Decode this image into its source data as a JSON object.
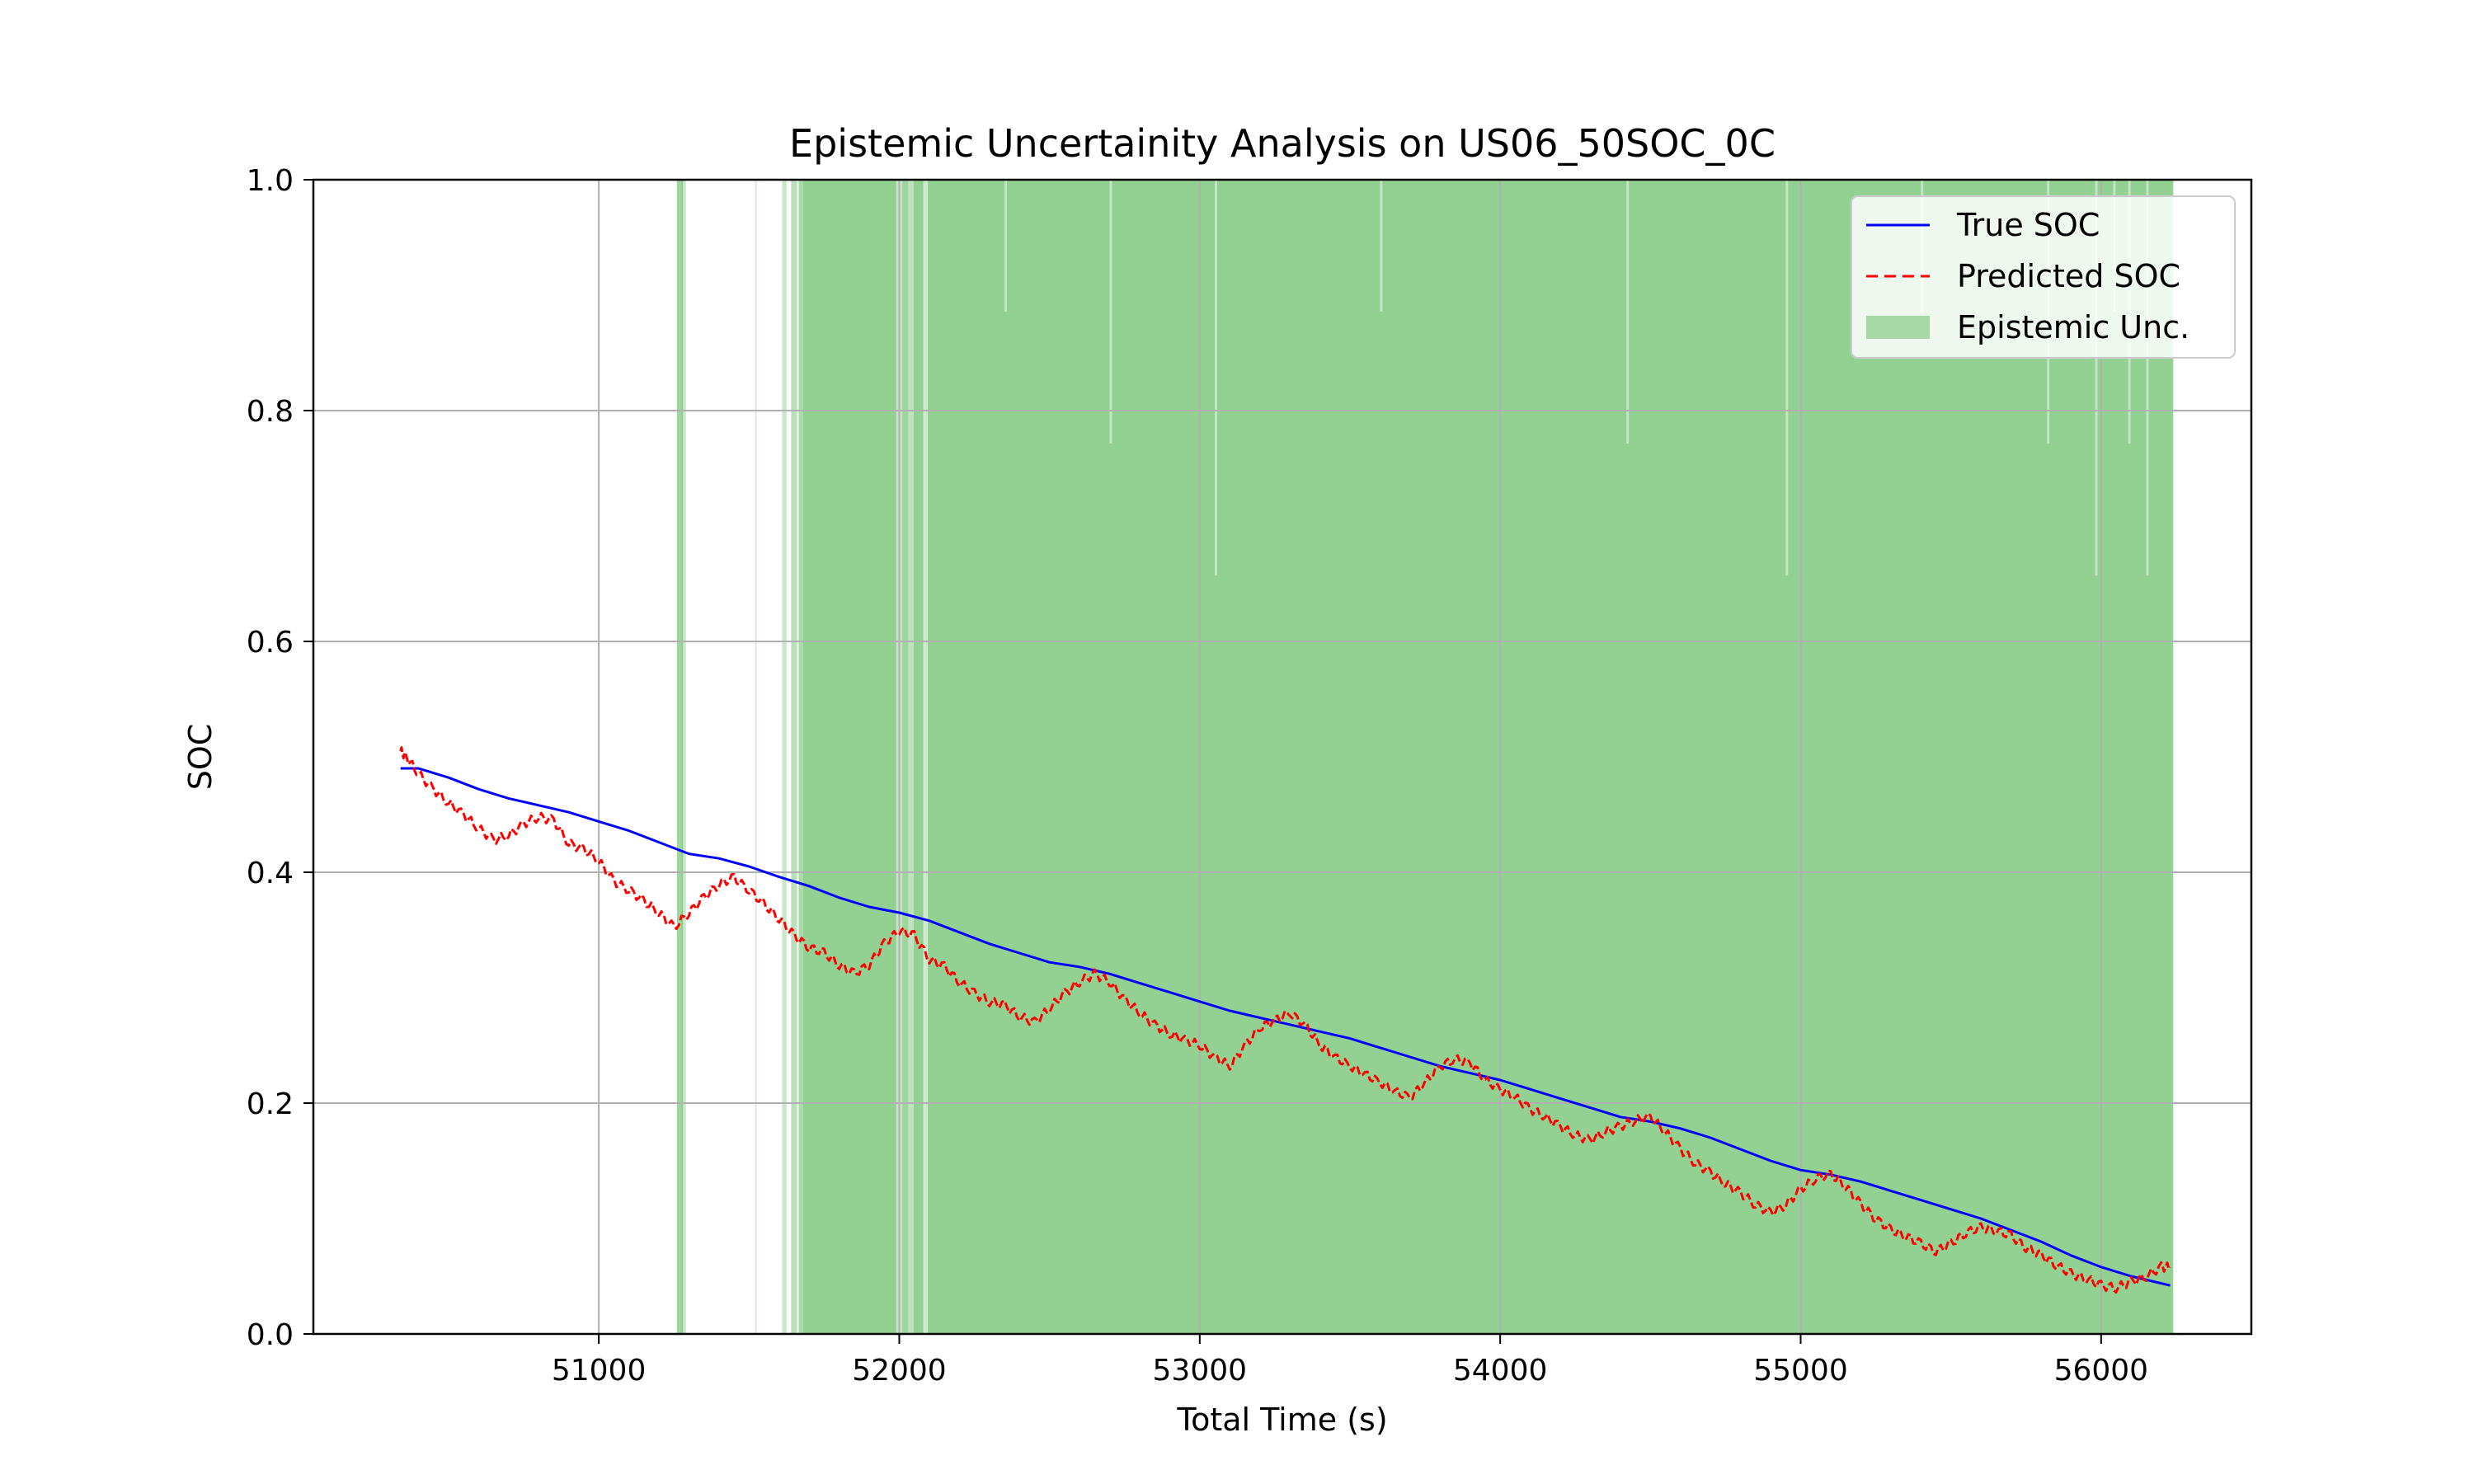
{
  "chart_data": {
    "type": "line",
    "title": "Epistemic Uncertainity Analysis on US06_50SOC_0C",
    "xlabel": "Total Time (s)",
    "ylabel": "SOC",
    "xlim": [
      50050,
      56500
    ],
    "ylim": [
      0,
      1
    ],
    "xticks": [
      51000,
      52000,
      53000,
      54000,
      55000,
      56000
    ],
    "xtick_labels": [
      "51000",
      "52000",
      "53000",
      "54000",
      "55000",
      "56000"
    ],
    "yticks": [
      0,
      0.2,
      0.4,
      0.6,
      0.8,
      1.0
    ],
    "ytick_labels": [
      "0.0",
      "0.2",
      "0.4",
      "0.6",
      "0.8",
      "1.0"
    ],
    "grid": true,
    "legend_position": "top-right",
    "series": [
      {
        "name": "True SOC",
        "color": "#0000ff",
        "style": "solid",
        "x": [
          50340,
          50400,
          50500,
          50600,
          50700,
          50800,
          50900,
          51000,
          51100,
          51200,
          51300,
          51400,
          51500,
          51600,
          51700,
          51800,
          51900,
          52000,
          52100,
          52200,
          52300,
          52400,
          52500,
          52600,
          52700,
          52800,
          52900,
          53000,
          53100,
          53200,
          53300,
          53400,
          53500,
          53600,
          53700,
          53800,
          53900,
          54000,
          54100,
          54200,
          54300,
          54400,
          54500,
          54600,
          54700,
          54800,
          54900,
          55000,
          55100,
          55200,
          55300,
          55400,
          55500,
          55600,
          55700,
          55800,
          55900,
          56000,
          56100,
          56230
        ],
        "y": [
          0.49,
          0.49,
          0.482,
          0.472,
          0.464,
          0.458,
          0.452,
          0.444,
          0.436,
          0.426,
          0.416,
          0.412,
          0.405,
          0.396,
          0.388,
          0.378,
          0.37,
          0.365,
          0.358,
          0.348,
          0.338,
          0.33,
          0.322,
          0.318,
          0.312,
          0.304,
          0.296,
          0.288,
          0.28,
          0.274,
          0.268,
          0.262,
          0.256,
          0.248,
          0.24,
          0.232,
          0.226,
          0.22,
          0.212,
          0.204,
          0.196,
          0.188,
          0.184,
          0.178,
          0.17,
          0.16,
          0.15,
          0.142,
          0.138,
          0.132,
          0.124,
          0.116,
          0.108,
          0.1,
          0.09,
          0.08,
          0.068,
          0.058,
          0.05,
          0.042
        ]
      },
      {
        "name": "Predicted SOC",
        "color": "#ff0000",
        "style": "dashed",
        "x": [
          50340,
          50360,
          50400,
          50450,
          50500,
          50550,
          50600,
          50650,
          50700,
          50750,
          50800,
          50850,
          50900,
          50950,
          51000,
          51050,
          51100,
          51150,
          51200,
          51250,
          51300,
          51350,
          51400,
          51450,
          51500,
          51550,
          51600,
          51650,
          51700,
          51750,
          51800,
          51850,
          51900,
          51950,
          52000,
          52050,
          52100,
          52150,
          52200,
          52250,
          52300,
          52350,
          52400,
          52450,
          52500,
          52550,
          52600,
          52650,
          52700,
          52750,
          52800,
          52850,
          52900,
          52950,
          53000,
          53050,
          53100,
          53150,
          53200,
          53250,
          53300,
          53350,
          53400,
          53450,
          53500,
          53550,
          53600,
          53650,
          53700,
          53750,
          53800,
          53850,
          53900,
          53950,
          54000,
          54050,
          54100,
          54150,
          54200,
          54250,
          54300,
          54350,
          54400,
          54450,
          54500,
          54550,
          54600,
          54650,
          54700,
          54750,
          54800,
          54850,
          54900,
          54950,
          55000,
          55050,
          55100,
          55150,
          55200,
          55250,
          55300,
          55350,
          55400,
          55450,
          55500,
          55550,
          55600,
          55650,
          55700,
          55750,
          55800,
          55850,
          55900,
          55950,
          56000,
          56050,
          56100,
          56150,
          56200,
          56230
        ],
        "y": [
          0.505,
          0.5,
          0.485,
          0.472,
          0.46,
          0.45,
          0.438,
          0.428,
          0.432,
          0.442,
          0.448,
          0.445,
          0.425,
          0.42,
          0.41,
          0.392,
          0.385,
          0.375,
          0.365,
          0.352,
          0.365,
          0.378,
          0.39,
          0.395,
          0.385,
          0.372,
          0.36,
          0.345,
          0.335,
          0.33,
          0.32,
          0.312,
          0.32,
          0.338,
          0.35,
          0.345,
          0.325,
          0.318,
          0.305,
          0.295,
          0.288,
          0.285,
          0.275,
          0.27,
          0.282,
          0.295,
          0.305,
          0.312,
          0.305,
          0.29,
          0.278,
          0.268,
          0.26,
          0.255,
          0.25,
          0.24,
          0.232,
          0.25,
          0.265,
          0.272,
          0.278,
          0.268,
          0.25,
          0.24,
          0.232,
          0.225,
          0.218,
          0.21,
          0.205,
          0.218,
          0.232,
          0.238,
          0.235,
          0.22,
          0.212,
          0.205,
          0.195,
          0.188,
          0.18,
          0.172,
          0.168,
          0.175,
          0.18,
          0.185,
          0.188,
          0.175,
          0.16,
          0.148,
          0.14,
          0.13,
          0.122,
          0.112,
          0.105,
          0.112,
          0.125,
          0.135,
          0.138,
          0.128,
          0.112,
          0.1,
          0.09,
          0.085,
          0.078,
          0.072,
          0.078,
          0.088,
          0.092,
          0.09,
          0.085,
          0.075,
          0.068,
          0.06,
          0.052,
          0.048,
          0.042,
          0.04,
          0.045,
          0.05,
          0.058,
          0.058
        ]
      }
    ],
    "uncertainty": {
      "name": "Epistemic Unc.",
      "color": "#6abf69",
      "opacity": 0.72,
      "spans": [
        [
          51260,
          51280,
          0.0,
          1.0,
          0.9
        ],
        [
          51275,
          51290,
          0.0,
          1.0,
          0.5
        ],
        [
          51520,
          51526,
          0.0,
          1.0,
          0.35
        ],
        [
          51610,
          51625,
          0.0,
          1.0,
          0.5
        ],
        [
          51640,
          51660,
          0.0,
          1.0,
          0.65
        ],
        [
          51665,
          51680,
          0.0,
          1.0,
          0.8
        ],
        [
          51680,
          51990,
          0.0,
          1.0,
          1.0
        ],
        [
          51990,
          52010,
          0.0,
          1.0,
          0.55
        ],
        [
          52010,
          52030,
          0.0,
          1.0,
          0.9
        ],
        [
          52030,
          52048,
          0.0,
          1.0,
          0.6
        ],
        [
          52048,
          52080,
          0.0,
          1.0,
          1.0
        ],
        [
          52080,
          52095,
          0.0,
          1.0,
          0.45
        ],
        [
          52095,
          56240,
          0.0,
          1.0,
          1.0
        ]
      ]
    },
    "legend": [
      {
        "label": "True SOC",
        "kind": "line",
        "color": "#0000ff",
        "dash": ""
      },
      {
        "label": "Predicted SOC",
        "kind": "line",
        "color": "#ff0000",
        "dash": "14,8"
      },
      {
        "label": "Epistemic Unc.",
        "kind": "patch",
        "color": "#6abf69",
        "dash": ""
      }
    ]
  }
}
